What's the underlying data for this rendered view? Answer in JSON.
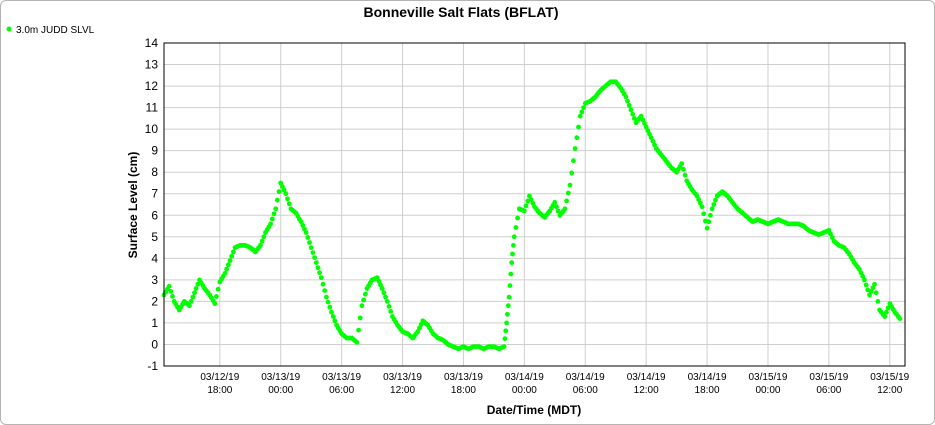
{
  "chart_data": {
    "type": "scatter",
    "title": "Bonneville Salt Flats (BFLAT)",
    "xlabel": "Date/Time (MDT)",
    "ylabel": "Surface Level (cm)",
    "ylim": [
      -1,
      14
    ],
    "yticks": [
      -1,
      0,
      1,
      2,
      3,
      4,
      5,
      6,
      7,
      8,
      9,
      10,
      11,
      12,
      13,
      14
    ],
    "xlim": [
      "2019-03-12 12:30",
      "2019-03-15 13:30"
    ],
    "xticks": [
      {
        "t": "2019-03-12 18:00",
        "date": "03/12/19",
        "time": "18:00"
      },
      {
        "t": "2019-03-13 00:00",
        "date": "03/13/19",
        "time": "00:00"
      },
      {
        "t": "2019-03-13 06:00",
        "date": "03/13/19",
        "time": "06:00"
      },
      {
        "t": "2019-03-13 12:00",
        "date": "03/13/19",
        "time": "12:00"
      },
      {
        "t": "2019-03-13 18:00",
        "date": "03/13/19",
        "time": "18:00"
      },
      {
        "t": "2019-03-14 00:00",
        "date": "03/14/19",
        "time": "00:00"
      },
      {
        "t": "2019-03-14 06:00",
        "date": "03/14/19",
        "time": "06:00"
      },
      {
        "t": "2019-03-14 12:00",
        "date": "03/14/19",
        "time": "12:00"
      },
      {
        "t": "2019-03-14 18:00",
        "date": "03/14/19",
        "time": "18:00"
      },
      {
        "t": "2019-03-15 00:00",
        "date": "03/15/19",
        "time": "00:00"
      },
      {
        "t": "2019-03-15 06:00",
        "date": "03/15/19",
        "time": "06:00"
      },
      {
        "t": "2019-03-15 12:00",
        "date": "03/15/19",
        "time": "12:00"
      }
    ],
    "grid": true,
    "legend_position": "top-left",
    "series": [
      {
        "name": "3.0m JUDD SLVL",
        "color": "#00ff00",
        "points": [
          [
            "2019-03-12 12:30",
            2.3
          ],
          [
            "2019-03-12 13:00",
            2.7
          ],
          [
            "2019-03-12 13:30",
            2.0
          ],
          [
            "2019-03-12 14:00",
            1.6
          ],
          [
            "2019-03-12 14:30",
            2.0
          ],
          [
            "2019-03-12 15:00",
            1.8
          ],
          [
            "2019-03-12 15:30",
            2.4
          ],
          [
            "2019-03-12 16:00",
            3.0
          ],
          [
            "2019-03-12 16:30",
            2.6
          ],
          [
            "2019-03-12 17:00",
            2.3
          ],
          [
            "2019-03-12 17:30",
            1.9
          ],
          [
            "2019-03-12 18:00",
            2.9
          ],
          [
            "2019-03-12 18:30",
            3.3
          ],
          [
            "2019-03-12 19:00",
            3.9
          ],
          [
            "2019-03-12 19:30",
            4.5
          ],
          [
            "2019-03-12 20:00",
            4.6
          ],
          [
            "2019-03-12 20:30",
            4.6
          ],
          [
            "2019-03-12 21:00",
            4.5
          ],
          [
            "2019-03-12 21:30",
            4.3
          ],
          [
            "2019-03-12 22:00",
            4.6
          ],
          [
            "2019-03-12 22:30",
            5.2
          ],
          [
            "2019-03-12 23:00",
            5.6
          ],
          [
            "2019-03-12 23:30",
            6.3
          ],
          [
            "2019-03-13 00:00",
            7.5
          ],
          [
            "2019-03-13 00:30",
            7.0
          ],
          [
            "2019-03-13 01:00",
            6.3
          ],
          [
            "2019-03-13 01:30",
            6.1
          ],
          [
            "2019-03-13 02:00",
            5.7
          ],
          [
            "2019-03-13 02:30",
            5.2
          ],
          [
            "2019-03-13 03:00",
            4.5
          ],
          [
            "2019-03-13 03:30",
            3.8
          ],
          [
            "2019-03-13 04:00",
            3.1
          ],
          [
            "2019-03-13 04:30",
            2.2
          ],
          [
            "2019-03-13 05:00",
            1.5
          ],
          [
            "2019-03-13 05:30",
            0.9
          ],
          [
            "2019-03-13 06:00",
            0.5
          ],
          [
            "2019-03-13 06:30",
            0.3
          ],
          [
            "2019-03-13 07:00",
            0.3
          ],
          [
            "2019-03-13 07:30",
            0.1
          ],
          [
            "2019-03-13 08:00",
            1.8
          ],
          [
            "2019-03-13 08:30",
            2.6
          ],
          [
            "2019-03-13 09:00",
            3.0
          ],
          [
            "2019-03-13 09:30",
            3.1
          ],
          [
            "2019-03-13 10:00",
            2.6
          ],
          [
            "2019-03-13 10:30",
            2.0
          ],
          [
            "2019-03-13 11:00",
            1.3
          ],
          [
            "2019-03-13 11:30",
            0.9
          ],
          [
            "2019-03-13 12:00",
            0.6
          ],
          [
            "2019-03-13 12:30",
            0.5
          ],
          [
            "2019-03-13 13:00",
            0.3
          ],
          [
            "2019-03-13 13:30",
            0.6
          ],
          [
            "2019-03-13 14:00",
            1.1
          ],
          [
            "2019-03-13 14:30",
            0.9
          ],
          [
            "2019-03-13 15:00",
            0.5
          ],
          [
            "2019-03-13 15:30",
            0.3
          ],
          [
            "2019-03-13 16:00",
            0.2
          ],
          [
            "2019-03-13 16:30",
            0.0
          ],
          [
            "2019-03-13 17:00",
            -0.1
          ],
          [
            "2019-03-13 17:30",
            -0.2
          ],
          [
            "2019-03-13 18:00",
            -0.1
          ],
          [
            "2019-03-13 18:30",
            -0.2
          ],
          [
            "2019-03-13 19:00",
            -0.1
          ],
          [
            "2019-03-13 19:30",
            -0.1
          ],
          [
            "2019-03-13 20:00",
            -0.2
          ],
          [
            "2019-03-13 20:30",
            -0.1
          ],
          [
            "2019-03-13 21:00",
            -0.1
          ],
          [
            "2019-03-13 21:30",
            -0.2
          ],
          [
            "2019-03-13 22:00",
            -0.1
          ],
          [
            "2019-03-13 22:15",
            1.0
          ],
          [
            "2019-03-13 22:30",
            2.2
          ],
          [
            "2019-03-13 22:45",
            3.8
          ],
          [
            "2019-03-13 23:00",
            5.0
          ],
          [
            "2019-03-13 23:30",
            6.3
          ],
          [
            "2019-03-14 00:00",
            6.2
          ],
          [
            "2019-03-14 00:30",
            6.9
          ],
          [
            "2019-03-14 01:00",
            6.4
          ],
          [
            "2019-03-14 01:30",
            6.1
          ],
          [
            "2019-03-14 02:00",
            5.9
          ],
          [
            "2019-03-14 02:30",
            6.2
          ],
          [
            "2019-03-14 03:00",
            6.6
          ],
          [
            "2019-03-14 03:30",
            6.0
          ],
          [
            "2019-03-14 04:00",
            6.3
          ],
          [
            "2019-03-14 04:30",
            7.4
          ],
          [
            "2019-03-14 05:00",
            9.1
          ],
          [
            "2019-03-14 05:30",
            10.6
          ],
          [
            "2019-03-14 06:00",
            11.2
          ],
          [
            "2019-03-14 06:30",
            11.3
          ],
          [
            "2019-03-14 07:00",
            11.5
          ],
          [
            "2019-03-14 07:30",
            11.8
          ],
          [
            "2019-03-14 08:00",
            12.0
          ],
          [
            "2019-03-14 08:30",
            12.2
          ],
          [
            "2019-03-14 09:00",
            12.2
          ],
          [
            "2019-03-14 09:30",
            11.9
          ],
          [
            "2019-03-14 10:00",
            11.5
          ],
          [
            "2019-03-14 10:30",
            10.9
          ],
          [
            "2019-03-14 11:00",
            10.3
          ],
          [
            "2019-03-14 11:30",
            10.6
          ],
          [
            "2019-03-14 12:00",
            10.1
          ],
          [
            "2019-03-14 12:30",
            9.6
          ],
          [
            "2019-03-14 13:00",
            9.1
          ],
          [
            "2019-03-14 13:30",
            8.8
          ],
          [
            "2019-03-14 14:00",
            8.5
          ],
          [
            "2019-03-14 14:30",
            8.2
          ],
          [
            "2019-03-14 15:00",
            8.0
          ],
          [
            "2019-03-14 15:30",
            8.4
          ],
          [
            "2019-03-14 16:00",
            7.6
          ],
          [
            "2019-03-14 16:30",
            7.2
          ],
          [
            "2019-03-14 17:00",
            6.9
          ],
          [
            "2019-03-14 17:30",
            6.4
          ],
          [
            "2019-03-14 18:00",
            5.4
          ],
          [
            "2019-03-14 18:30",
            6.3
          ],
          [
            "2019-03-14 19:00",
            6.9
          ],
          [
            "2019-03-14 19:30",
            7.1
          ],
          [
            "2019-03-14 20:00",
            6.9
          ],
          [
            "2019-03-14 20:30",
            6.6
          ],
          [
            "2019-03-14 21:00",
            6.3
          ],
          [
            "2019-03-14 21:30",
            6.1
          ],
          [
            "2019-03-14 22:00",
            5.9
          ],
          [
            "2019-03-14 22:30",
            5.7
          ],
          [
            "2019-03-14 23:00",
            5.8
          ],
          [
            "2019-03-14 23:30",
            5.7
          ],
          [
            "2019-03-15 00:00",
            5.6
          ],
          [
            "2019-03-15 00:30",
            5.7
          ],
          [
            "2019-03-15 01:00",
            5.8
          ],
          [
            "2019-03-15 01:30",
            5.7
          ],
          [
            "2019-03-15 02:00",
            5.6
          ],
          [
            "2019-03-15 02:30",
            5.6
          ],
          [
            "2019-03-15 03:00",
            5.6
          ],
          [
            "2019-03-15 03:30",
            5.5
          ],
          [
            "2019-03-15 04:00",
            5.3
          ],
          [
            "2019-03-15 04:30",
            5.2
          ],
          [
            "2019-03-15 05:00",
            5.1
          ],
          [
            "2019-03-15 05:30",
            5.2
          ],
          [
            "2019-03-15 06:00",
            5.3
          ],
          [
            "2019-03-15 06:30",
            4.8
          ],
          [
            "2019-03-15 07:00",
            4.6
          ],
          [
            "2019-03-15 07:30",
            4.5
          ],
          [
            "2019-03-15 08:00",
            4.2
          ],
          [
            "2019-03-15 08:30",
            3.8
          ],
          [
            "2019-03-15 09:00",
            3.5
          ],
          [
            "2019-03-15 09:30",
            3.0
          ],
          [
            "2019-03-15 10:00",
            2.3
          ],
          [
            "2019-03-15 10:30",
            2.8
          ],
          [
            "2019-03-15 11:00",
            1.6
          ],
          [
            "2019-03-15 11:30",
            1.3
          ],
          [
            "2019-03-15 12:00",
            1.9
          ],
          [
            "2019-03-15 12:30",
            1.5
          ],
          [
            "2019-03-15 13:00",
            1.2
          ]
        ]
      }
    ]
  }
}
